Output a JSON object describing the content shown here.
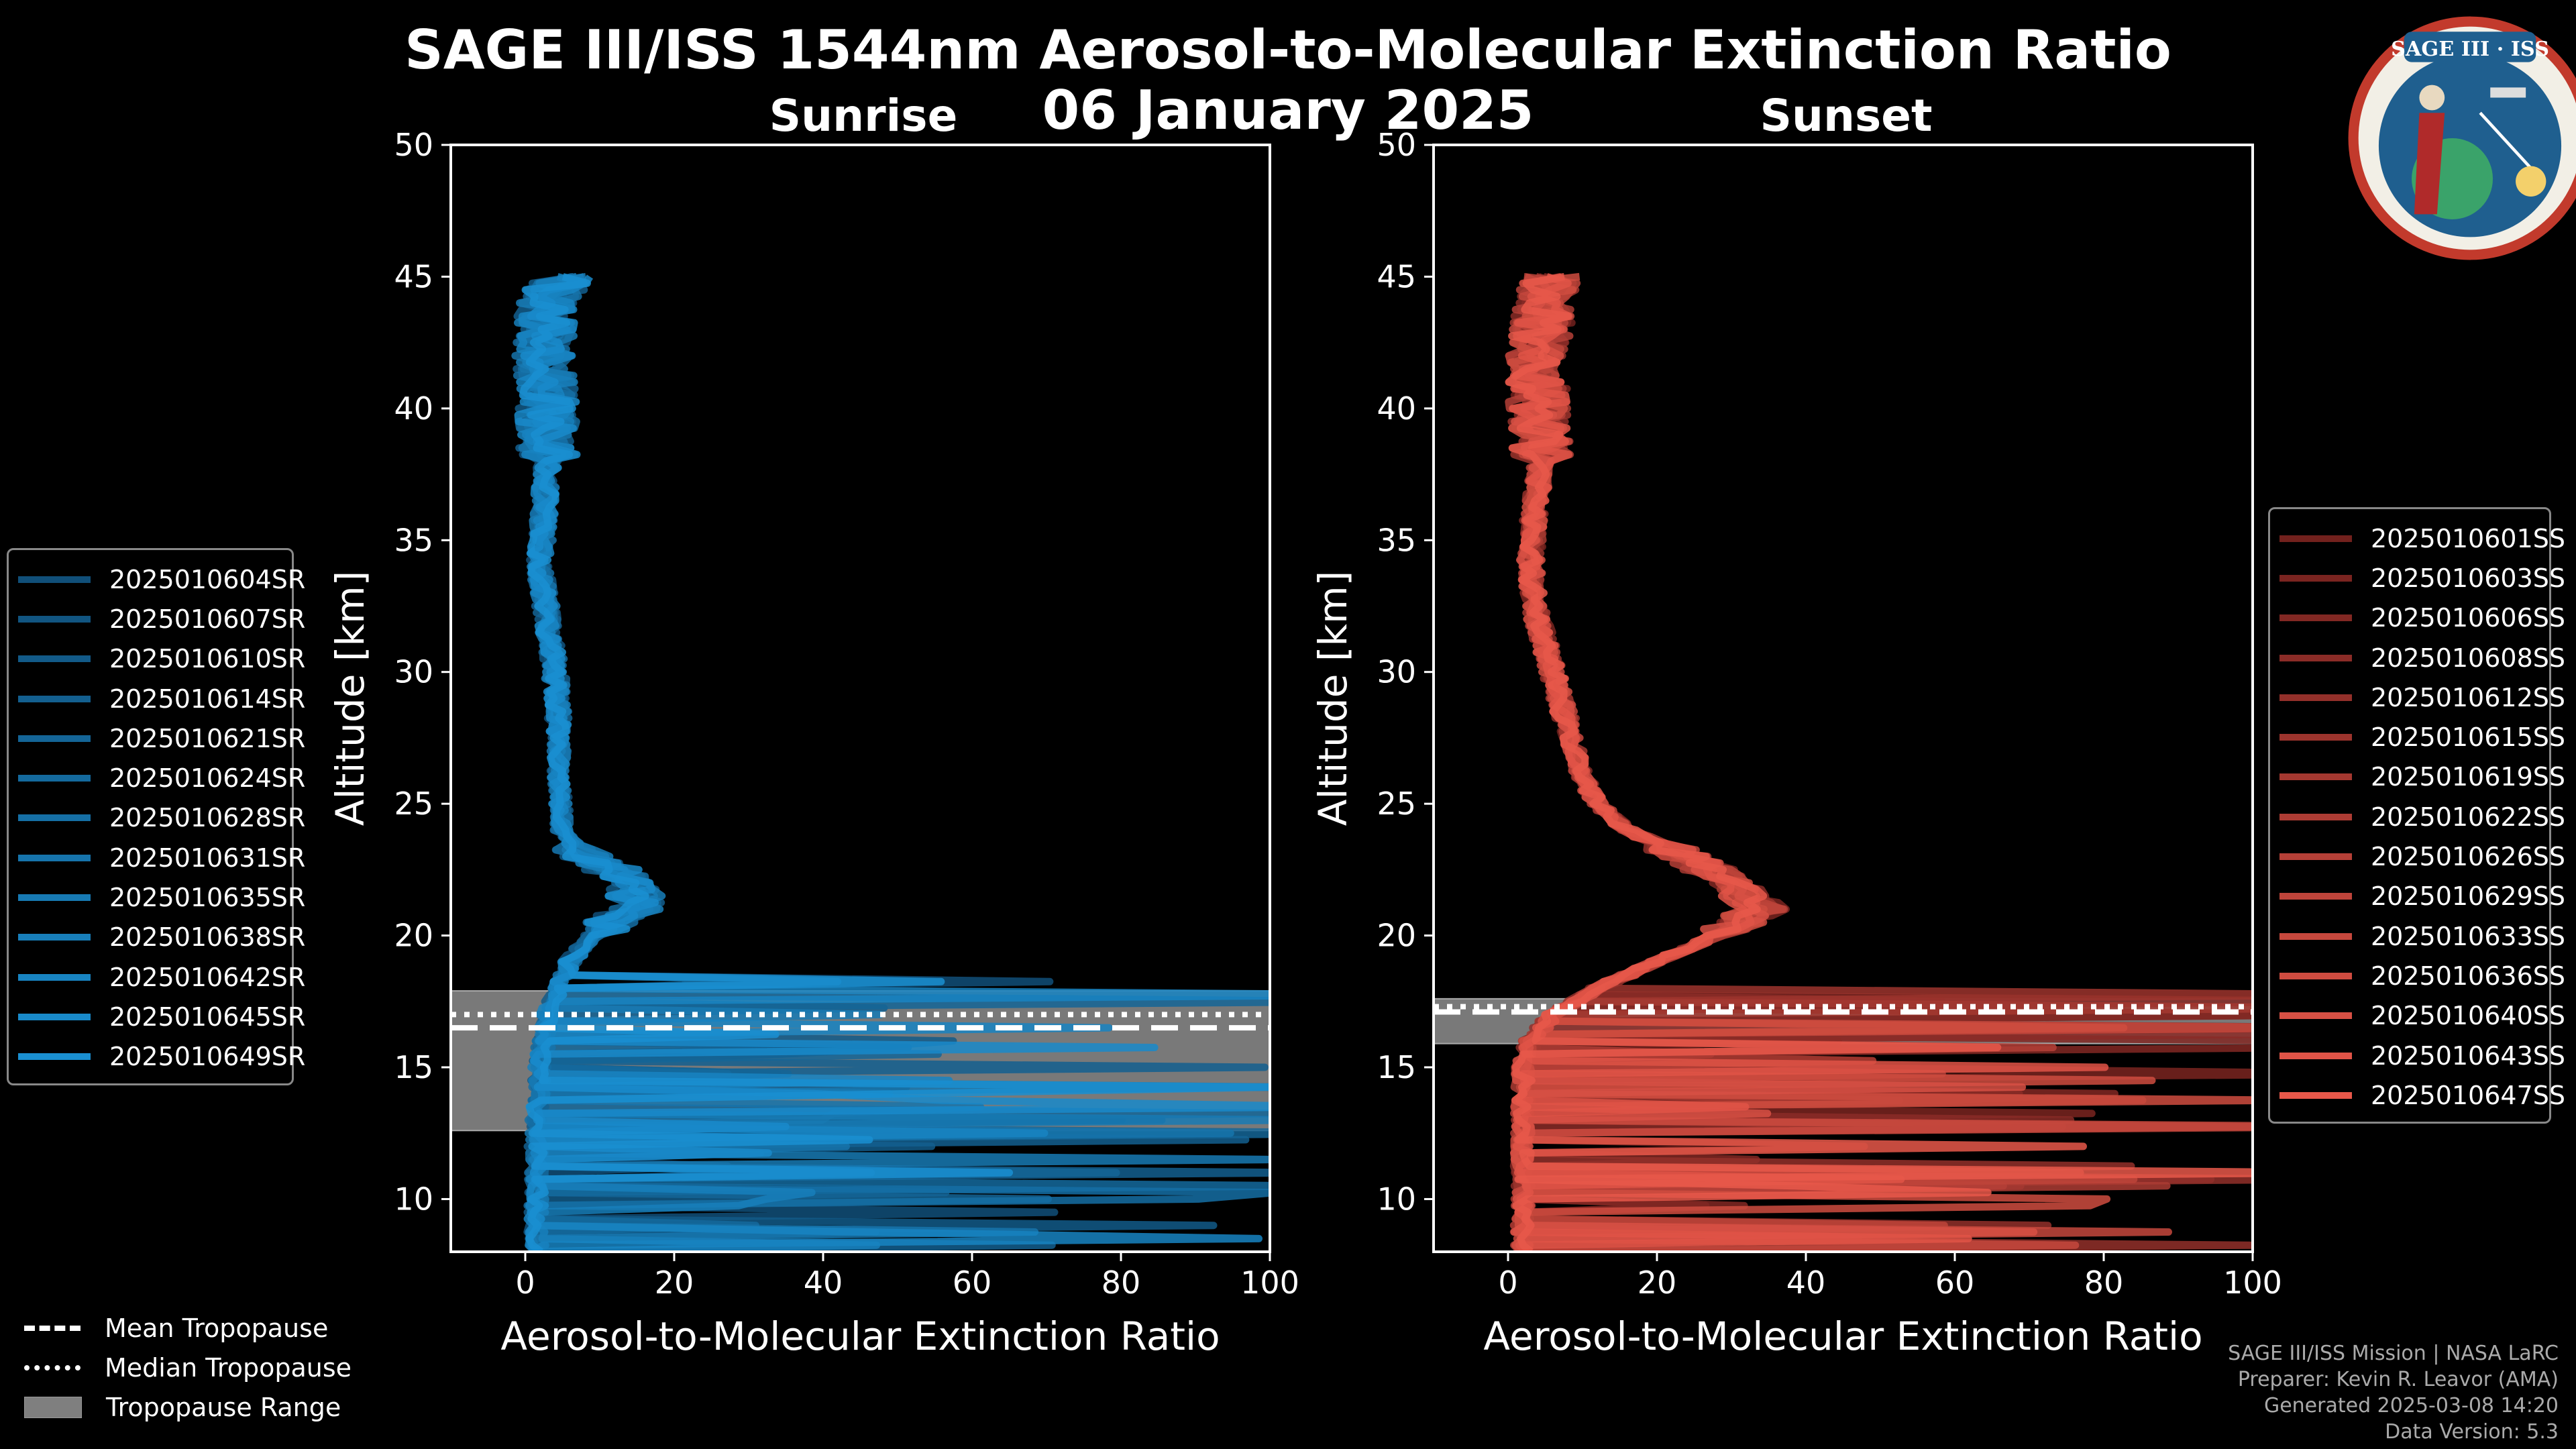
{
  "title_line1": "SAGE III/ISS 1544nm Aerosol-to-Molecular Extinction Ratio",
  "title_line2": "06 January 2025",
  "logo_text": "SAGE III · ISS",
  "credits": [
    "SAGE III/ISS Mission | NASA LaRC",
    "Preparer: Kevin R. Leavor (AMA)",
    "Generated 2025-03-08 14:20",
    "Data Version: 5.3"
  ],
  "tropopause_legend": [
    {
      "label": "Mean Tropopause",
      "style": "dashed"
    },
    {
      "label": "Median Tropopause",
      "style": "dotted"
    },
    {
      "label": "Tropopause Range",
      "style": "band"
    }
  ],
  "colors": {
    "sunrise_dark": "#0d3a5c",
    "sunrise_light": "#1a8fd1",
    "sunset_dark": "#4a0e0e",
    "sunset_light": "#e8584a",
    "tropopause_band": "#7f7f7f"
  },
  "chart_data": [
    {
      "type": "line",
      "subtitle": "Sunrise",
      "xlabel": "Aerosol-to-Molecular Extinction Ratio",
      "ylabel": "Altitude [km]",
      "xlim": [
        -10,
        100
      ],
      "ylim": [
        8,
        50
      ],
      "xticks": [
        0,
        20,
        40,
        60,
        80,
        100
      ],
      "yticks": [
        10,
        15,
        20,
        25,
        30,
        35,
        40,
        45
      ],
      "series": [
        "2025010604SR",
        "2025010607SR",
        "2025010610SR",
        "2025010614SR",
        "2025010621SR",
        "2025010624SR",
        "2025010628SR",
        "2025010631SR",
        "2025010635SR",
        "2025010638SR",
        "2025010642SR",
        "2025010645SR",
        "2025010649SR"
      ],
      "base_profile": {
        "altitude": [
          8,
          9,
          10,
          11,
          12,
          13,
          14,
          15,
          16,
          17,
          18,
          19,
          20,
          21,
          22,
          23,
          24,
          26,
          28,
          30,
          32,
          34,
          36,
          38,
          40,
          42,
          44,
          45
        ],
        "ratio": [
          1.5,
          1.5,
          1.5,
          1.5,
          1.5,
          1.5,
          2,
          2,
          2.5,
          3,
          4.5,
          6,
          9,
          14,
          15,
          8,
          5,
          4.5,
          4.5,
          4,
          3,
          2,
          2.5,
          3,
          3,
          2.5,
          3,
          5
        ]
      },
      "tropopause": {
        "mean_km": 16.5,
        "median_km": 17.0,
        "range_km": [
          12.6,
          17.9
        ]
      }
    },
    {
      "type": "line",
      "subtitle": "Sunset",
      "xlabel": "Aerosol-to-Molecular Extinction Ratio",
      "ylabel": "Altitude [km]",
      "xlim": [
        -10,
        100
      ],
      "ylim": [
        8,
        50
      ],
      "xticks": [
        0,
        20,
        40,
        60,
        80,
        100
      ],
      "yticks": [
        10,
        15,
        20,
        25,
        30,
        35,
        40,
        45
      ],
      "series": [
        "2025010601SS",
        "2025010603SS",
        "2025010606SS",
        "2025010608SS",
        "2025010612SS",
        "2025010615SS",
        "2025010619SS",
        "2025010622SS",
        "2025010626SS",
        "2025010629SS",
        "2025010633SS",
        "2025010636SS",
        "2025010640SS",
        "2025010643SS",
        "2025010647SS"
      ],
      "base_profile": {
        "altitude": [
          8,
          9,
          10,
          11,
          12,
          13,
          14,
          15,
          16,
          17,
          18,
          19,
          20,
          21,
          22,
          23,
          24,
          25,
          26,
          28,
          30,
          32,
          34,
          36,
          38,
          40,
          42,
          44,
          45
        ],
        "ratio": [
          2,
          2,
          2,
          2,
          2,
          2,
          2,
          2,
          3,
          6,
          12,
          20,
          28,
          34,
          30,
          24,
          16,
          12,
          10,
          8,
          6,
          4,
          3,
          3.5,
          4.5,
          4,
          4,
          5,
          6
        ]
      },
      "tropopause": {
        "mean_km": 17.1,
        "median_km": 17.3,
        "range_km": [
          15.9,
          17.6
        ]
      }
    }
  ]
}
